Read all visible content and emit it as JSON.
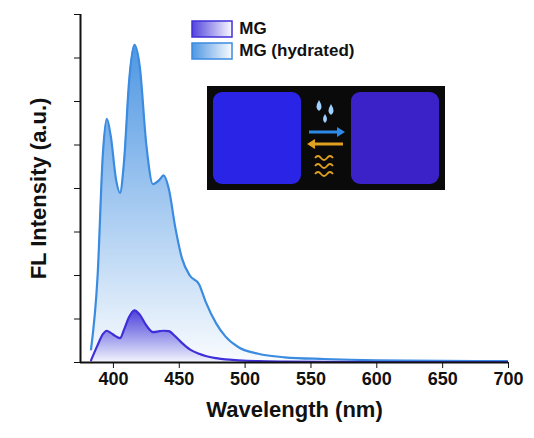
{
  "chart_data": {
    "type": "area",
    "x_label": "Wavelength (nm)",
    "y_label": "FL Intensity (a.u.)",
    "x": [
      383,
      388,
      392,
      395,
      398,
      402,
      405,
      408,
      412,
      416,
      420,
      425,
      430,
      435,
      438,
      442,
      447,
      452,
      458,
      465,
      470,
      478,
      485,
      495,
      510,
      530,
      560,
      600,
      650,
      700
    ],
    "series": [
      {
        "name": "MG",
        "color": "#3f2fd9",
        "values": [
          0.05,
          0.4,
          0.65,
          0.73,
          0.68,
          0.6,
          0.56,
          0.75,
          1.05,
          1.2,
          1.1,
          0.85,
          0.7,
          0.72,
          0.73,
          0.72,
          0.6,
          0.45,
          0.3,
          0.2,
          0.15,
          0.1,
          0.07,
          0.05,
          0.03,
          0.02,
          0.015,
          0.01,
          0.01,
          0.01
        ]
      },
      {
        "name": "MG (hydrated)",
        "color": "#3b8be0",
        "values": [
          0.3,
          2.0,
          4.8,
          5.6,
          5.2,
          4.2,
          3.9,
          4.6,
          6.5,
          7.3,
          6.8,
          5.0,
          4.1,
          4.2,
          4.3,
          4.0,
          3.1,
          2.4,
          2.0,
          1.8,
          1.4,
          0.9,
          0.6,
          0.35,
          0.2,
          0.12,
          0.08,
          0.05,
          0.04,
          0.03
        ]
      }
    ],
    "xlim": [
      375,
      700
    ],
    "xticks": [
      400,
      450,
      500,
      550,
      600,
      650,
      700
    ],
    "ylim": [
      0,
      8
    ],
    "yticks": [
      0,
      1,
      2,
      3,
      4,
      5,
      6,
      7,
      8
    ],
    "tick_labels": "x",
    "legend": "top"
  }
}
